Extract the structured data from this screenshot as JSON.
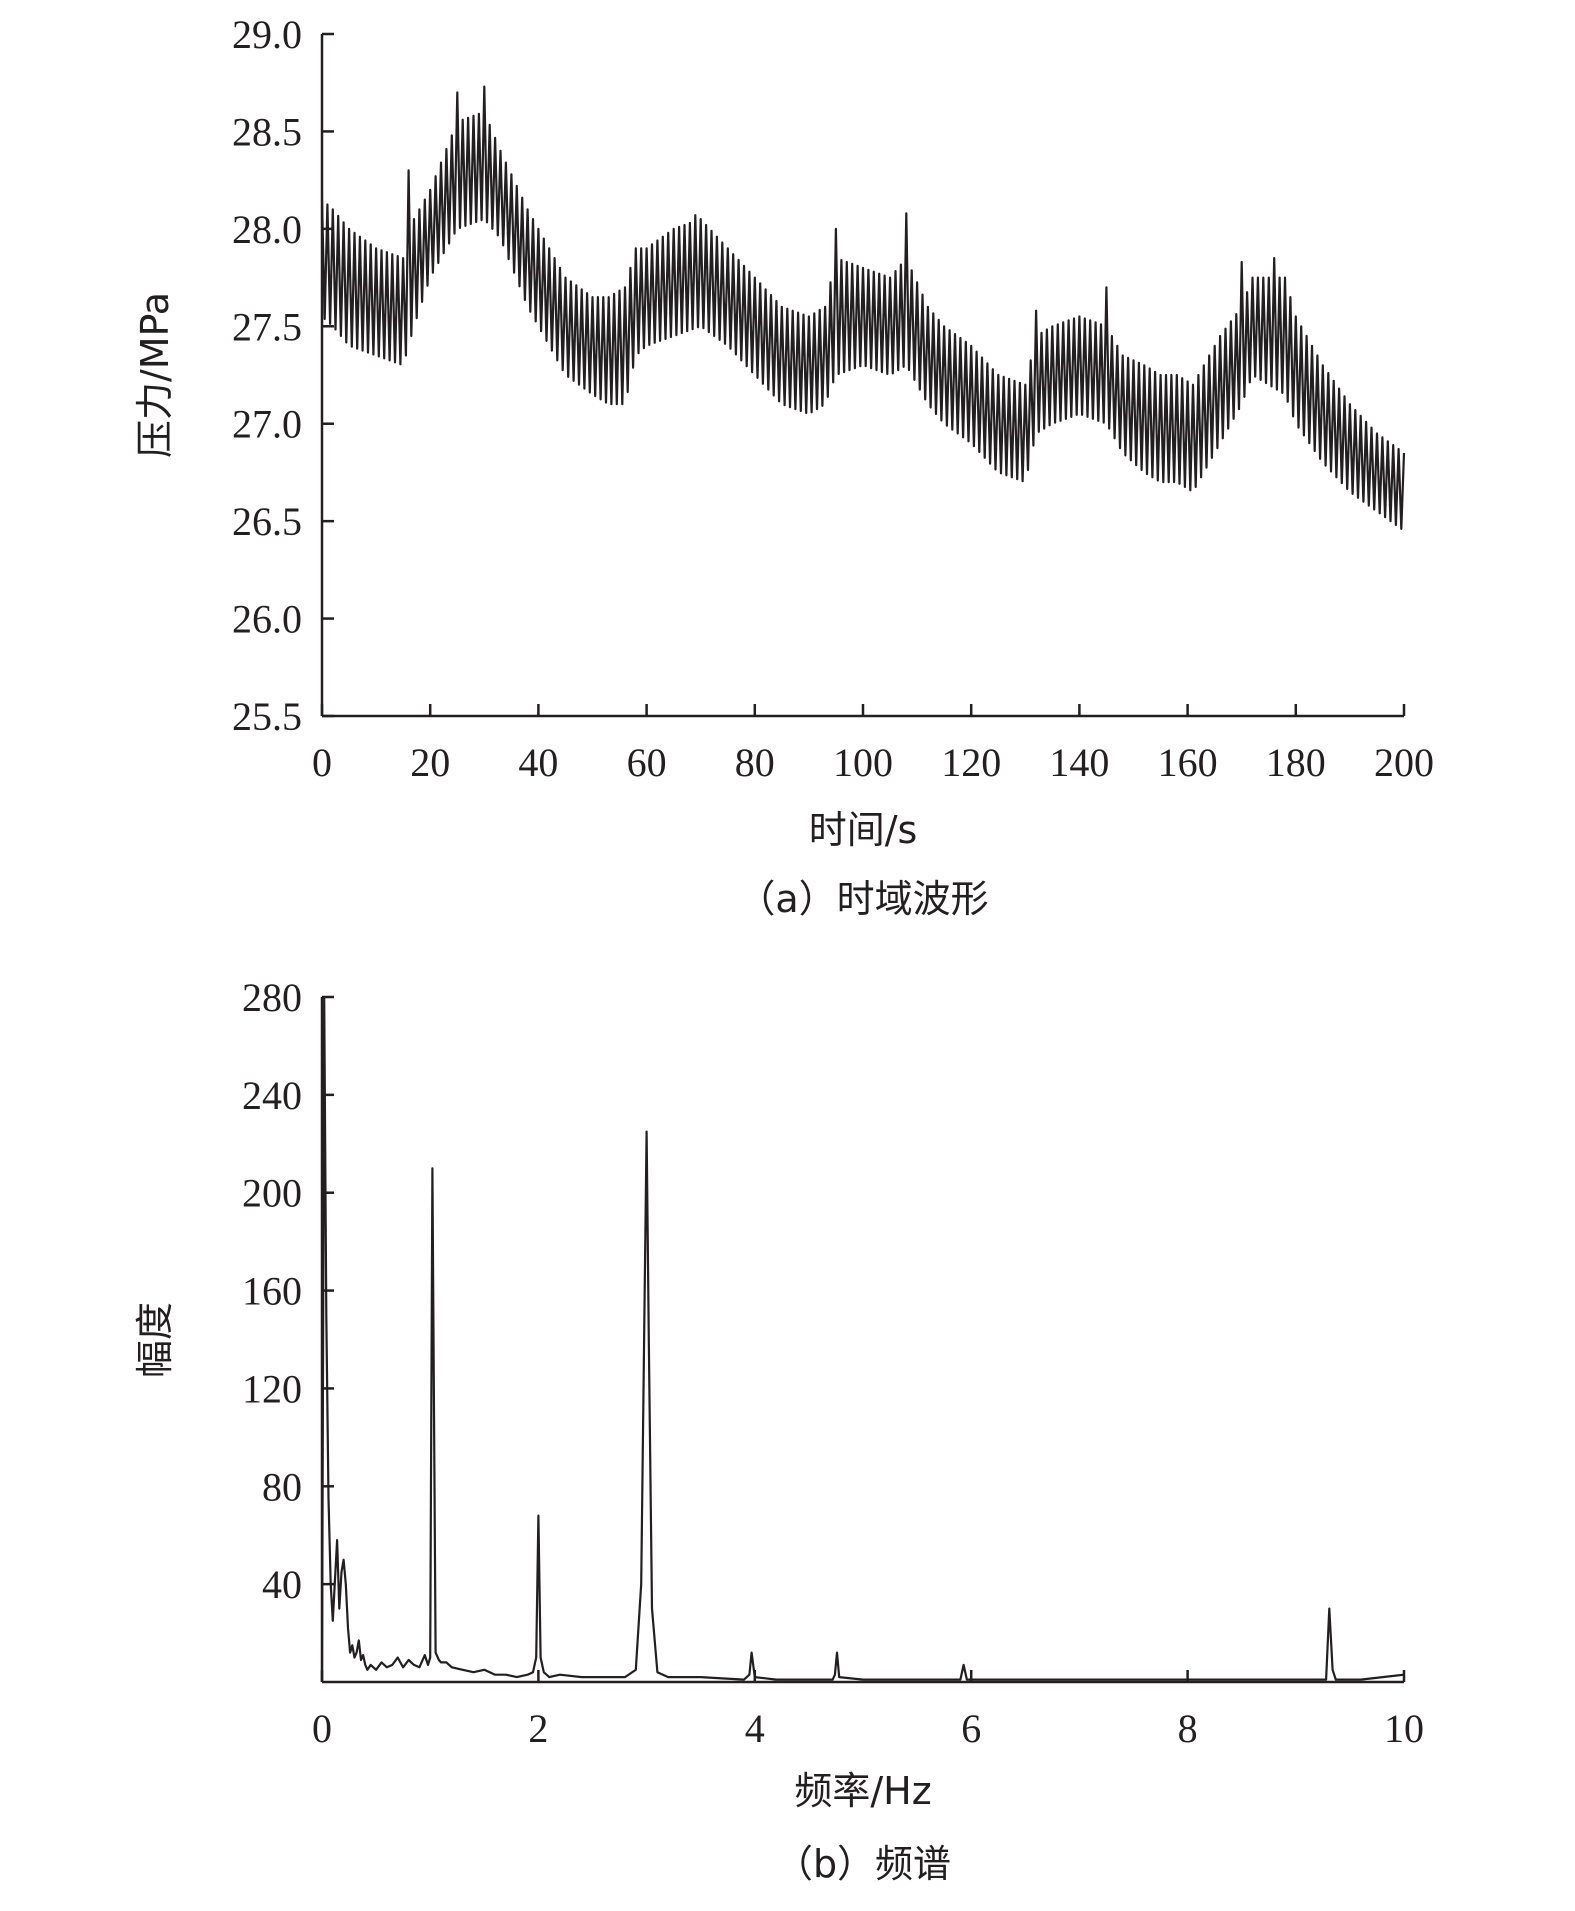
{
  "chart_data": [
    {
      "type": "line",
      "caption": "（a）时域波形",
      "xlabel": "时间/s",
      "ylabel": "压力/MPa",
      "xlim": [
        0,
        200
      ],
      "ylim": [
        25.5,
        29.0
      ],
      "x_ticks": [
        0,
        20,
        40,
        60,
        80,
        100,
        120,
        140,
        160,
        180,
        200
      ],
      "x_tick_labels": [
        "0",
        "20",
        "40",
        "60",
        "80",
        "100",
        "120",
        "140",
        "160",
        "180",
        "200"
      ],
      "y_ticks": [
        25.5,
        26.0,
        26.5,
        27.0,
        27.5,
        28.0,
        28.5,
        29.0
      ],
      "y_tick_labels": [
        "25.5",
        "26.0",
        "26.5",
        "27.0",
        "27.5",
        "28.0",
        "28.5",
        "29.0"
      ],
      "grid": false,
      "series": [
        {
          "color": "#231f20",
          "oscillation": {
            "period_s": 1.0,
            "envelope_x": [
              0,
              2,
              5,
              10,
              15,
              17,
              20,
              25,
              30,
              33,
              38,
              45,
              50,
              53,
              56,
              58,
              60,
              65,
              70,
              75,
              80,
              85,
              90,
              93,
              95,
              100,
              105,
              108,
              112,
              115,
              120,
              125,
              130,
              132,
              135,
              140,
              145,
              148,
              152,
              155,
              158,
              161,
              163,
              166,
              170,
              172,
              175,
              178,
              180,
              185,
              190,
              195,
              200
            ],
            "envelope_upper": [
              28.15,
              28.1,
              28.0,
              27.9,
              27.85,
              28.05,
              28.2,
              28.55,
              28.6,
              28.4,
              28.1,
              27.75,
              27.65,
              27.65,
              27.7,
              27.9,
              27.9,
              28.0,
              28.05,
              27.9,
              27.75,
              27.6,
              27.55,
              27.6,
              27.85,
              27.8,
              27.75,
              27.85,
              27.6,
              27.5,
              27.4,
              27.25,
              27.2,
              27.45,
              27.5,
              27.55,
              27.5,
              27.35,
              27.3,
              27.25,
              27.25,
              27.2,
              27.3,
              27.45,
              27.6,
              27.75,
              27.75,
              27.75,
              27.55,
              27.3,
              27.1,
              26.95,
              26.85
            ],
            "envelope_lower": [
              27.55,
              27.5,
              27.4,
              27.35,
              27.3,
              27.5,
              27.75,
              28.0,
              28.05,
              27.95,
              27.6,
              27.25,
              27.15,
              27.1,
              27.1,
              27.35,
              27.4,
              27.45,
              27.5,
              27.4,
              27.25,
              27.1,
              27.05,
              27.1,
              27.25,
              27.3,
              27.25,
              27.3,
              27.1,
              27.0,
              26.9,
              26.75,
              26.7,
              26.95,
              27.0,
              27.05,
              27.0,
              26.85,
              26.75,
              26.7,
              26.7,
              26.65,
              26.75,
              26.9,
              27.1,
              27.25,
              27.2,
              27.15,
              27.0,
              26.8,
              26.65,
              26.55,
              26.45
            ],
            "spikes": [
              [
                16,
                28.3
              ],
              [
                25,
                28.7
              ],
              [
                30,
                28.73
              ],
              [
                69,
                28.07
              ],
              [
                95,
                28.0
              ],
              [
                108,
                28.08
              ],
              [
                132,
                27.58
              ],
              [
                145,
                27.7
              ],
              [
                170,
                27.83
              ],
              [
                176,
                27.85
              ]
            ]
          }
        }
      ]
    },
    {
      "type": "line",
      "caption": "（b）频谱",
      "xlabel": "频率/Hz",
      "ylabel": "幅度",
      "xlim": [
        0,
        10
      ],
      "ylim": [
        0,
        280
      ],
      "x_ticks": [
        0,
        2,
        4,
        6,
        8,
        10
      ],
      "x_tick_labels": [
        "0",
        "2",
        "4",
        "6",
        "8",
        "10"
      ],
      "y_ticks": [
        40,
        80,
        120,
        160,
        200,
        240,
        280
      ],
      "y_tick_labels": [
        "40",
        "80",
        "120",
        "160",
        "200",
        "240",
        "280"
      ],
      "grid": false,
      "series": [
        {
          "color": "#231f20",
          "x": [
            0.0,
            0.02,
            0.04,
            0.06,
            0.08,
            0.1,
            0.12,
            0.14,
            0.16,
            0.18,
            0.2,
            0.22,
            0.24,
            0.26,
            0.28,
            0.3,
            0.32,
            0.34,
            0.36,
            0.38,
            0.4,
            0.42,
            0.45,
            0.5,
            0.55,
            0.6,
            0.65,
            0.7,
            0.75,
            0.8,
            0.85,
            0.9,
            0.95,
            0.98,
            1.0,
            1.02,
            1.05,
            1.08,
            1.1,
            1.15,
            1.2,
            1.3,
            1.4,
            1.5,
            1.6,
            1.7,
            1.8,
            1.9,
            1.95,
            1.98,
            2.0,
            2.02,
            2.05,
            2.1,
            2.2,
            2.4,
            2.6,
            2.8,
            2.9,
            2.95,
            2.98,
            3.0,
            3.02,
            3.05,
            3.1,
            3.2,
            3.5,
            3.9,
            3.95,
            3.97,
            4.0,
            4.2,
            4.6,
            4.72,
            4.74,
            4.76,
            4.78,
            5.0,
            5.5,
            5.9,
            5.93,
            5.96,
            6.2,
            7.0,
            8.0,
            9.0,
            9.28,
            9.31,
            9.34,
            9.37,
            9.6,
            10.0
          ],
          "y": [
            0,
            280,
            150,
            75,
            40,
            25,
            42,
            58,
            30,
            45,
            50,
            40,
            22,
            12,
            15,
            10,
            12,
            17,
            9,
            11,
            7,
            5,
            7,
            5,
            8,
            6,
            7,
            10,
            6,
            9,
            7,
            6,
            11,
            7,
            10,
            210,
            12,
            9,
            8,
            8,
            6,
            5,
            4,
            5,
            3,
            3,
            2,
            3,
            4,
            10,
            68,
            10,
            4,
            2,
            3,
            2,
            2,
            2,
            5,
            40,
            150,
            225,
            140,
            30,
            4,
            2,
            2,
            1,
            3,
            12,
            2,
            1,
            1,
            1,
            3,
            12,
            2,
            1,
            1,
            1,
            7,
            1,
            1,
            1,
            1,
            1,
            1,
            30,
            5,
            1,
            1,
            3
          ]
        }
      ]
    }
  ]
}
